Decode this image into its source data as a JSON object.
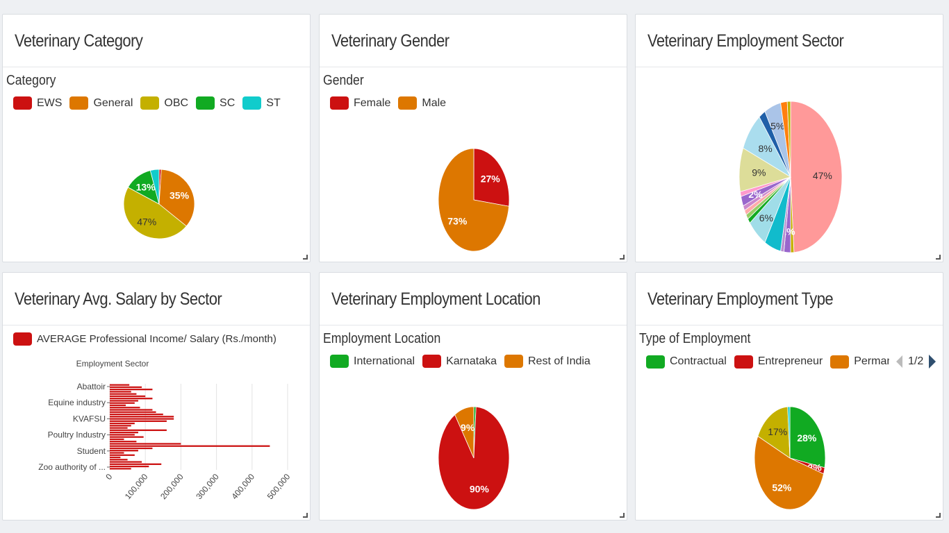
{
  "panels": [
    {
      "title": "Veterinary Category",
      "chart_label": "Category",
      "legend": [
        {
          "label": "EWS",
          "color": "#cc1111"
        },
        {
          "label": "General",
          "color": "#dd7700"
        },
        {
          "label": "OBC",
          "color": "#c4b000"
        },
        {
          "label": "SC",
          "color": "#11aa22"
        },
        {
          "label": "ST",
          "color": "#11cccc"
        }
      ]
    },
    {
      "title": "Veterinary Gender",
      "chart_label": "Gender",
      "legend": [
        {
          "label": "Female",
          "color": "#cc1111"
        },
        {
          "label": "Male",
          "color": "#dd7700"
        }
      ]
    },
    {
      "title": "Veterinary Employment Sector",
      "chart_label": "",
      "legend": []
    },
    {
      "title": "Veterinary Avg. Salary by Sector",
      "chart_label": "",
      "legend": [
        {
          "label": "AVERAGE Professional Income/ Salary (Rs./month)",
          "color": "#cc1111"
        }
      ]
    },
    {
      "title": "Veterinary Employment Location",
      "chart_label": "Employment Location",
      "legend": [
        {
          "label": "International",
          "color": "#11aa22"
        },
        {
          "label": "Karnataka",
          "color": "#cc1111"
        },
        {
          "label": "Rest of India",
          "color": "#dd7700"
        }
      ]
    },
    {
      "title": "Veterinary Employment Type",
      "chart_label": "Type of Employment",
      "legend": [
        {
          "label": "Contractual",
          "color": "#11aa22"
        },
        {
          "label": "Entrepreneur",
          "color": "#cc1111"
        },
        {
          "label": "Permanent",
          "color": "#dd7700"
        },
        {
          "label": "",
          "color": "#c4b000"
        }
      ],
      "pager": "1/2"
    }
  ],
  "chart_data": [
    {
      "type": "pie",
      "title": "Veterinary Category",
      "legend_title": "Category",
      "slices": [
        {
          "label": "EWS",
          "value": 1,
          "color": "#cc1111",
          "display": ""
        },
        {
          "label": "General",
          "value": 35,
          "color": "#dd7700",
          "display": "35%"
        },
        {
          "label": "OBC",
          "value": 47,
          "color": "#c4b000",
          "display": "47%"
        },
        {
          "label": "SC",
          "value": 13,
          "color": "#11aa22",
          "display": "13%"
        },
        {
          "label": "ST",
          "value": 4,
          "color": "#11cccc",
          "display": ""
        }
      ]
    },
    {
      "type": "pie",
      "title": "Veterinary Gender",
      "legend_title": "Gender",
      "slices": [
        {
          "label": "Female",
          "value": 27,
          "color": "#cc1111",
          "display": "27%"
        },
        {
          "label": "Male",
          "value": 73,
          "color": "#dd7700",
          "display": "73%"
        }
      ]
    },
    {
      "type": "pie",
      "title": "Veterinary Employment Sector",
      "slices": [
        {
          "value": 47,
          "color": "#ff9999",
          "display": "47%"
        },
        {
          "value": 1,
          "color": "#c4b000",
          "display": ""
        },
        {
          "value": 2,
          "color": "#9966cc",
          "display": "2%"
        },
        {
          "value": 1,
          "color": "#b88fd0",
          "display": ""
        },
        {
          "value": 5,
          "color": "#11bbcc",
          "display": ""
        },
        {
          "value": 6,
          "color": "#a0dde8",
          "display": "6%"
        },
        {
          "value": 1,
          "color": "#11aa22",
          "display": ""
        },
        {
          "value": 1,
          "color": "#99cc66",
          "display": ""
        },
        {
          "value": 1,
          "color": "#ffaaaa",
          "display": ""
        },
        {
          "value": 1,
          "color": "#cc88cc",
          "display": ""
        },
        {
          "value": 2,
          "color": "#9966cc",
          "display": "2%"
        },
        {
          "value": 1,
          "color": "#ff99cc",
          "display": ""
        },
        {
          "value": 9,
          "color": "#dddd99",
          "display": "9%"
        },
        {
          "value": 8,
          "color": "#aaddee",
          "display": "8%"
        },
        {
          "value": 2,
          "color": "#1f5fa8",
          "display": ""
        },
        {
          "value": 5,
          "color": "#aac4e8",
          "display": "5%"
        },
        {
          "value": 2,
          "color": "#ff7f0e",
          "display": ""
        },
        {
          "value": 1,
          "color": "#c4b000",
          "display": ""
        }
      ]
    },
    {
      "type": "bar",
      "orientation": "horizontal",
      "title": "Veterinary Avg. Salary by Sector",
      "ylabel": "Employment Sector",
      "series_name": "AVERAGE Professional Income/ Salary (Rs./month)",
      "category_ticks": [
        "Abattoir",
        "Equine industry",
        "KVAFSU",
        "Poultry Industry",
        "Student",
        "Zoo authority of ..."
      ],
      "xticks": [
        "0",
        "100,000",
        "200,000",
        "300,000",
        "400,000",
        "500,000"
      ],
      "xlim": [
        0,
        500000
      ],
      "values": [
        55000,
        90000,
        120000,
        60000,
        75000,
        100000,
        120000,
        80000,
        70000,
        45000,
        85000,
        120000,
        130000,
        150000,
        180000,
        180000,
        160000,
        70000,
        60000,
        50000,
        160000,
        80000,
        70000,
        95000,
        40000,
        75000,
        200000,
        450000,
        120000,
        80000,
        40000,
        70000,
        30000,
        50000,
        90000,
        145000,
        110000,
        60000
      ],
      "color": "#cc1111"
    },
    {
      "type": "pie",
      "title": "Veterinary Employment Location",
      "legend_title": "Employment Location",
      "slices": [
        {
          "label": "International",
          "value": 1,
          "color": "#11aa22",
          "display": ""
        },
        {
          "label": "Karnataka",
          "value": 90,
          "color": "#cc1111",
          "display": "90%"
        },
        {
          "label": "Rest of India",
          "value": 9,
          "color": "#dd7700",
          "display": "9%"
        }
      ]
    },
    {
      "type": "pie",
      "title": "Veterinary Employment Type",
      "legend_title": "Type of Employment",
      "slices": [
        {
          "label": "Contractual",
          "value": 28,
          "color": "#11aa22",
          "display": "28%"
        },
        {
          "label": "Entrepreneur",
          "value": 2,
          "color": "#cc1111",
          "display": "2%"
        },
        {
          "label": "Permanent",
          "value": 52,
          "color": "#dd7700",
          "display": "52%"
        },
        {
          "label": "",
          "value": 17,
          "color": "#c4b000",
          "display": "17%"
        },
        {
          "value": 1,
          "color": "#11cccc",
          "display": ""
        }
      ]
    }
  ]
}
